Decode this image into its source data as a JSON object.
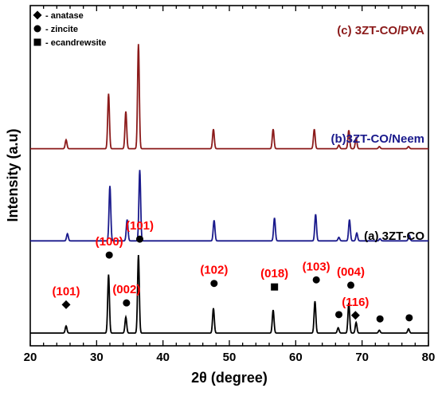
{
  "chart_data": {
    "type": "line",
    "xlabel": "2θ (degree)",
    "ylabel": "Intensity (a.u)",
    "xlim": [
      20,
      80
    ],
    "x_ticks": [
      "20",
      "30",
      "40",
      "50",
      "60",
      "70",
      "80"
    ],
    "y_ticks_shown": false,
    "grid": false,
    "legend": {
      "placement": "top-left",
      "entries": [
        {
          "marker": "diamond",
          "label": "- anatase"
        },
        {
          "marker": "circle",
          "label": "- zincite"
        },
        {
          "marker": "square",
          "label": "- ecandrewsite"
        }
      ]
    },
    "series": [
      {
        "name": "(a) 3ZT-CO",
        "color": "#000000",
        "baseline": 0,
        "peaks": [
          {
            "x": 25.4,
            "y": 2.0
          },
          {
            "x": 31.8,
            "y": 16.5
          },
          {
            "x": 34.4,
            "y": 4.5
          },
          {
            "x": 36.3,
            "y": 22.0
          },
          {
            "x": 47.6,
            "y": 7.0
          },
          {
            "x": 56.6,
            "y": 6.5
          },
          {
            "x": 62.9,
            "y": 9.0
          },
          {
            "x": 66.4,
            "y": 1.5
          },
          {
            "x": 68.0,
            "y": 8.5
          },
          {
            "x": 69.1,
            "y": 3.0
          },
          {
            "x": 72.6,
            "y": 0.8
          },
          {
            "x": 77.0,
            "y": 1.2
          }
        ]
      },
      {
        "name": "(b)3ZT-CO/Neem",
        "color": "#1a1a8c",
        "baseline": 26,
        "peaks": [
          {
            "x": 25.6,
            "y": 2.0
          },
          {
            "x": 32.0,
            "y": 15.5
          },
          {
            "x": 34.6,
            "y": 6.0
          },
          {
            "x": 36.5,
            "y": 20.0
          },
          {
            "x": 47.7,
            "y": 5.8
          },
          {
            "x": 56.8,
            "y": 6.5
          },
          {
            "x": 63.0,
            "y": 7.5
          },
          {
            "x": 66.5,
            "y": 1.0
          },
          {
            "x": 68.1,
            "y": 6.0
          },
          {
            "x": 69.2,
            "y": 2.2
          },
          {
            "x": 72.7,
            "y": 0.6
          },
          {
            "x": 77.1,
            "y": 1.6
          }
        ]
      },
      {
        "name": "(c) 3ZT-CO/PVA",
        "color": "#8b1a1a",
        "baseline": 52,
        "peaks": [
          {
            "x": 25.4,
            "y": 2.5
          },
          {
            "x": 31.8,
            "y": 15.5
          },
          {
            "x": 34.4,
            "y": 10.5
          },
          {
            "x": 36.3,
            "y": 29.5
          },
          {
            "x": 47.6,
            "y": 5.5
          },
          {
            "x": 56.6,
            "y": 5.5
          },
          {
            "x": 62.8,
            "y": 5.5
          },
          {
            "x": 66.5,
            "y": 1.0
          },
          {
            "x": 68.0,
            "y": 5.2
          },
          {
            "x": 69.1,
            "y": 3.0
          },
          {
            "x": 72.6,
            "y": 0.6
          },
          {
            "x": 77.0,
            "y": 0.6
          }
        ]
      }
    ],
    "annotations": [
      {
        "text": "(101)",
        "x": 25.4,
        "y": 8.0,
        "marker": "diamond"
      },
      {
        "text": "(100)",
        "x": 31.9,
        "y": 22.0,
        "marker": "circle"
      },
      {
        "text": "(002)",
        "x": 34.5,
        "y": 8.5,
        "marker": "circle"
      },
      {
        "text": "(101)",
        "x": 36.5,
        "y": 26.5,
        "marker": "circle"
      },
      {
        "text": "(102)",
        "x": 47.7,
        "y": 14.0,
        "marker": "circle"
      },
      {
        "text": "(018)",
        "x": 56.8,
        "y": 13.0,
        "marker": "square"
      },
      {
        "text": "(103)",
        "x": 63.1,
        "y": 15.0,
        "marker": "circle"
      },
      {
        "text": "(004)",
        "x": 68.3,
        "y": 13.5,
        "marker": "circle"
      },
      {
        "text": "(116)",
        "x": 69.0,
        "y": 5.0,
        "marker": "diamond"
      }
    ],
    "extra_markers": [
      {
        "x": 66.5,
        "y": 5.2,
        "marker": "circle"
      },
      {
        "x": 72.7,
        "y": 4.0,
        "marker": "circle"
      },
      {
        "x": 77.1,
        "y": 4.3,
        "marker": "circle"
      }
    ]
  }
}
